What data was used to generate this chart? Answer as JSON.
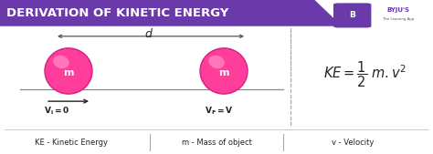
{
  "title": "DERIVATION OF KINETIC ENERGY",
  "title_bg": "#6a3aaa",
  "title_color": "#ffffff",
  "main_bg": "#ffffff",
  "footer_bg": "#f8f8f8",
  "ball_color": "#ff3d9a",
  "ball_edge": "#d42080",
  "ball_highlight": "#ff85c4",
  "text_color": "#222222",
  "dashed_color": "#aaaaaa",
  "line_color": "#888888",
  "footer_text": [
    "KE - Kinetic Energy",
    "m - Mass of object",
    "v - Velocity"
  ],
  "byju_purple": "#6a3aaa",
  "title_fontsize": 9.5,
  "footer_fontsize": 6.0
}
